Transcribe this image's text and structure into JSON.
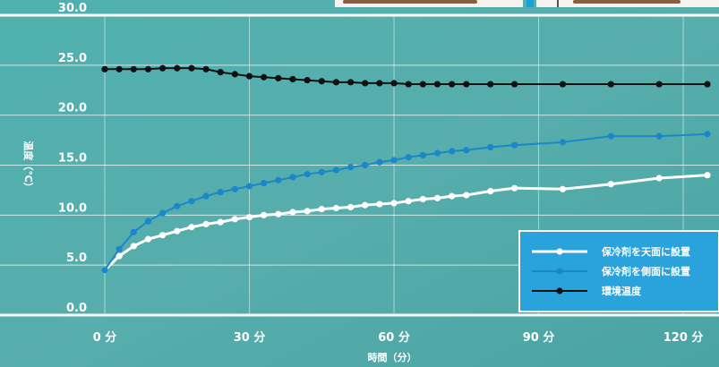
{
  "chart_data": {
    "type": "line",
    "xlabel": "時間（分）",
    "ylabel": "温度（℃）",
    "x_tick_labels": [
      "0 分",
      "30 分",
      "60 分",
      "90 分",
      "120 分"
    ],
    "x_ticks": [
      0,
      30,
      60,
      90,
      120
    ],
    "xlim": [
      0,
      125
    ],
    "ylim": [
      0,
      30
    ],
    "y_tick_labels": [
      "0.0",
      "5.0",
      "10.0",
      "15.0",
      "20.0",
      "25.0",
      "30.0"
    ],
    "y_ticks": [
      0,
      5,
      10,
      15,
      20,
      25,
      30
    ],
    "grid": true,
    "legend_position": "bottom-right",
    "series": [
      {
        "name": "保冷剤を天面に設置",
        "color": "#ffffff",
        "x": [
          0,
          3,
          6,
          9,
          12,
          15,
          18,
          21,
          24,
          27,
          30,
          33,
          36,
          39,
          42,
          45,
          48,
          51,
          54,
          57,
          60,
          63,
          66,
          69,
          72,
          75,
          80,
          85,
          95,
          105,
          115,
          125
        ],
        "y": [
          4.5,
          5.9,
          6.9,
          7.6,
          8.0,
          8.4,
          8.8,
          9.1,
          9.3,
          9.6,
          9.8,
          10.0,
          10.1,
          10.3,
          10.4,
          10.6,
          10.7,
          10.8,
          11.0,
          11.1,
          11.2,
          11.4,
          11.6,
          11.7,
          11.9,
          12.0,
          12.4,
          12.7,
          12.6,
          13.1,
          13.7,
          14.0
        ]
      },
      {
        "name": "保冷剤を側面に設置",
        "color": "#1a87c9",
        "x": [
          0,
          3,
          6,
          9,
          12,
          15,
          18,
          21,
          24,
          27,
          30,
          33,
          36,
          39,
          42,
          45,
          48,
          51,
          54,
          57,
          60,
          63,
          66,
          69,
          72,
          75,
          80,
          85,
          95,
          105,
          115,
          125
        ],
        "y": [
          4.5,
          6.6,
          8.3,
          9.4,
          10.2,
          10.9,
          11.4,
          11.9,
          12.3,
          12.6,
          12.9,
          13.2,
          13.5,
          13.8,
          14.1,
          14.3,
          14.5,
          14.8,
          15.0,
          15.3,
          15.5,
          15.8,
          16.0,
          16.2,
          16.4,
          16.5,
          16.8,
          17.0,
          17.3,
          17.9,
          17.9,
          18.1
        ]
      },
      {
        "name": "環境温度",
        "color": "#111111",
        "x": [
          0,
          3,
          6,
          9,
          12,
          15,
          18,
          21,
          24,
          27,
          30,
          33,
          36,
          39,
          42,
          45,
          48,
          51,
          54,
          57,
          60,
          63,
          66,
          69,
          72,
          75,
          80,
          85,
          95,
          105,
          115,
          125
        ],
        "y": [
          24.6,
          24.6,
          24.6,
          24.6,
          24.7,
          24.7,
          24.7,
          24.6,
          24.3,
          24.1,
          23.9,
          23.8,
          23.7,
          23.6,
          23.5,
          23.4,
          23.3,
          23.3,
          23.2,
          23.2,
          23.2,
          23.1,
          23.1,
          23.1,
          23.1,
          23.1,
          23.1,
          23.1,
          23.1,
          23.1,
          23.1,
          23.1
        ]
      }
    ]
  }
}
